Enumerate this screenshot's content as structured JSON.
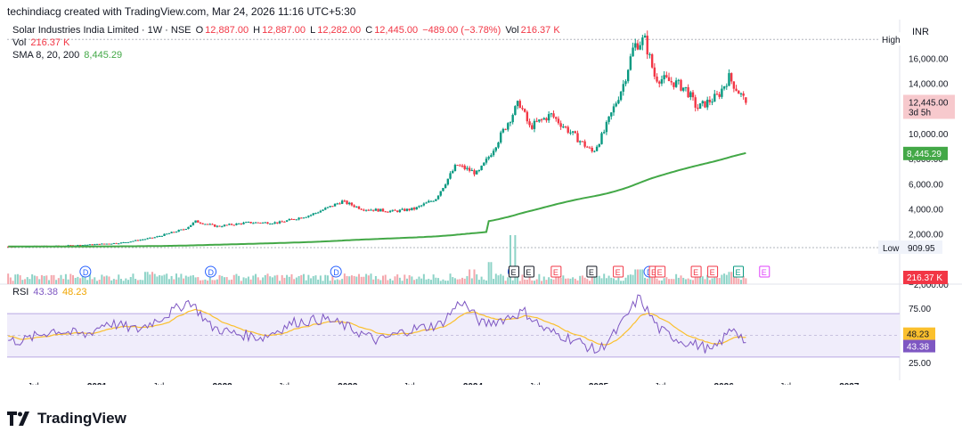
{
  "header": "techindiacg created with TradingView.com, Mar 24, 2026 11:16 UTC+5:30",
  "legend": {
    "symbol": "Solar Industries India Limited · 1W · NSE",
    "o_label": "O",
    "o": "12,887.00",
    "h_label": "H",
    "h": "12,887.00",
    "l_label": "L",
    "l": "12,282.00",
    "c_label": "C",
    "c": "12,445.00",
    "change": "−489.00 (−3.78%)",
    "vol_label": "Vol",
    "vol": "216.37 K",
    "vol_row_label": "Vol",
    "vol_row_value": "216.37 K",
    "sma_label": "SMA 8, 20, 200",
    "sma_value": "8,445.29",
    "rsi_label": "RSI",
    "rsi_value": "43.38",
    "rsi_ma_value": "48.23"
  },
  "currency": "INR",
  "brand": "TradingView",
  "colors": {
    "up": "#089981",
    "down": "#f23645",
    "sma": "#43a847",
    "rsi": "#7e57c2",
    "rsi_ma": "#fbc02d",
    "dividend": "#2962ff",
    "earnings_neutral": "#131722"
  },
  "chart_data": [
    {
      "type": "candlestick",
      "title": "Solar Industries India Limited · 1W · NSE",
      "interval": "1W",
      "yaxis": {
        "ticks": [
          -2000,
          0,
          2000,
          4000,
          6000,
          8000,
          10000,
          12000,
          14000,
          16000
        ],
        "tick_labels": [
          "−2,000.00",
          "0.00",
          "2,000.00",
          "4,000.00",
          "6,000.00",
          "8,000.00",
          "10,000.00",
          "12,000.00",
          "14,000.00",
          "16,000.00"
        ],
        "ylim": [
          -2000,
          17800
        ],
        "side": "right"
      },
      "xaxis": {
        "tick_labels": [
          "Jul",
          "2021",
          "Jul",
          "2022",
          "Jul",
          "2023",
          "Jul",
          "2024",
          "Jul",
          "2025",
          "Jul",
          "2026",
          "Jul",
          "2027"
        ],
        "range": [
          "2020-05",
          "2027-06"
        ]
      },
      "price_path": [
        [
          "2020-05-01",
          1000
        ],
        [
          "2020-10-01",
          1050
        ],
        [
          "2021-01-01",
          1150
        ],
        [
          "2021-04-01",
          1300
        ],
        [
          "2021-07-01",
          1700
        ],
        [
          "2021-10-01",
          2400
        ],
        [
          "2021-11-01",
          3000
        ],
        [
          "2022-01-01",
          2600
        ],
        [
          "2022-04-01",
          2900
        ],
        [
          "2022-07-01",
          2900
        ],
        [
          "2022-10-01",
          3500
        ],
        [
          "2022-12-01",
          4200
        ],
        [
          "2023-01-01",
          4600
        ],
        [
          "2023-03-01",
          4000
        ],
        [
          "2023-06-01",
          3800
        ],
        [
          "2023-08-01",
          4000
        ],
        [
          "2023-10-01",
          4800
        ],
        [
          "2023-12-01",
          7500
        ],
        [
          "2024-02-01",
          6800
        ],
        [
          "2024-03-01",
          8000
        ],
        [
          "2024-04-01",
          9500
        ],
        [
          "2024-05-01",
          11000
        ],
        [
          "2024-06-01",
          12500
        ],
        [
          "2024-07-01",
          10500
        ],
        [
          "2024-09-01",
          11500
        ],
        [
          "2024-11-01",
          10000
        ],
        [
          "2025-01-01",
          8500
        ],
        [
          "2025-02-01",
          10000
        ],
        [
          "2025-04-01",
          14000
        ],
        [
          "2025-05-01",
          17000
        ],
        [
          "2025-06-01",
          17500
        ],
        [
          "2025-07-01",
          14500
        ],
        [
          "2025-09-01",
          14000
        ],
        [
          "2025-10-01",
          13500
        ],
        [
          "2025-11-01",
          12000
        ],
        [
          "2026-01-01",
          13000
        ],
        [
          "2026-02-01",
          14500
        ],
        [
          "2026-03-24",
          12445
        ]
      ],
      "last": {
        "open": 12887,
        "high": 12887,
        "low": 12282,
        "close": 12445,
        "change": -489,
        "change_pct": -3.78,
        "countdown": "3d 5h"
      },
      "high_marker": {
        "label": "High"
      },
      "low_marker": {
        "label": "Low",
        "value": 909.95,
        "value_label": "909.95"
      },
      "series": [
        {
          "name": "SMA 8, 20, 200",
          "type": "line",
          "last": 8445.29,
          "last_label": "8,445.29"
        }
      ],
      "price_label": "12,445.00"
    },
    {
      "type": "bar",
      "title": "Vol",
      "last": "216.37 K",
      "events": {
        "dividends": [
          "2020-12",
          "2021-12",
          "2022-12",
          "2024-05",
          "2025-06"
        ],
        "earnings": [
          "2024-05",
          "2024-06",
          "2024-09",
          "2024-12",
          "2025-03",
          "2025-06",
          "2025-07",
          "2025-10",
          "2025-12",
          "2026-02"
        ],
        "upcoming_earnings": [
          "2026-05"
        ]
      },
      "spikes": [
        [
          "2024-05",
          1.0
        ],
        [
          "2024-03",
          0.45
        ],
        [
          "2024-01",
          0.3
        ],
        [
          "2025-05",
          0.3
        ],
        [
          "2021-06",
          0.25
        ],
        [
          "2026-02",
          0.25
        ]
      ]
    },
    {
      "type": "line",
      "title": "RSI",
      "ylim": [
        0,
        100
      ],
      "levels": [
        30,
        50,
        70
      ],
      "tick_labels": [
        "75.00",
        "50.00",
        "25.00"
      ],
      "series": [
        {
          "name": "RSI",
          "last": 43.38,
          "last_label": "43.38"
        },
        {
          "name": "RSI-based MA",
          "last": 48.23,
          "last_label": "48.23"
        }
      ],
      "rsi_path": [
        [
          "2020-06",
          45
        ],
        [
          "2020-09",
          55
        ],
        [
          "2020-12",
          50
        ],
        [
          "2021-02",
          62
        ],
        [
          "2021-05",
          55
        ],
        [
          "2021-08",
          70
        ],
        [
          "2021-10",
          82
        ],
        [
          "2021-12",
          58
        ],
        [
          "2022-02",
          52
        ],
        [
          "2022-05",
          48
        ],
        [
          "2022-08",
          62
        ],
        [
          "2022-11",
          65
        ],
        [
          "2023-01",
          58
        ],
        [
          "2023-04",
          45
        ],
        [
          "2023-07",
          55
        ],
        [
          "2023-10",
          60
        ],
        [
          "2023-12",
          82
        ],
        [
          "2024-02",
          60
        ],
        [
          "2024-04",
          65
        ],
        [
          "2024-06",
          72
        ],
        [
          "2024-08",
          55
        ],
        [
          "2024-11",
          45
        ],
        [
          "2025-01",
          35
        ],
        [
          "2025-03",
          55
        ],
        [
          "2025-05",
          85
        ],
        [
          "2025-07",
          55
        ],
        [
          "2025-09",
          45
        ],
        [
          "2025-11",
          40
        ],
        [
          "2025-12",
          35
        ],
        [
          "2026-02",
          58
        ],
        [
          "2026-03-24",
          43
        ]
      ]
    }
  ]
}
